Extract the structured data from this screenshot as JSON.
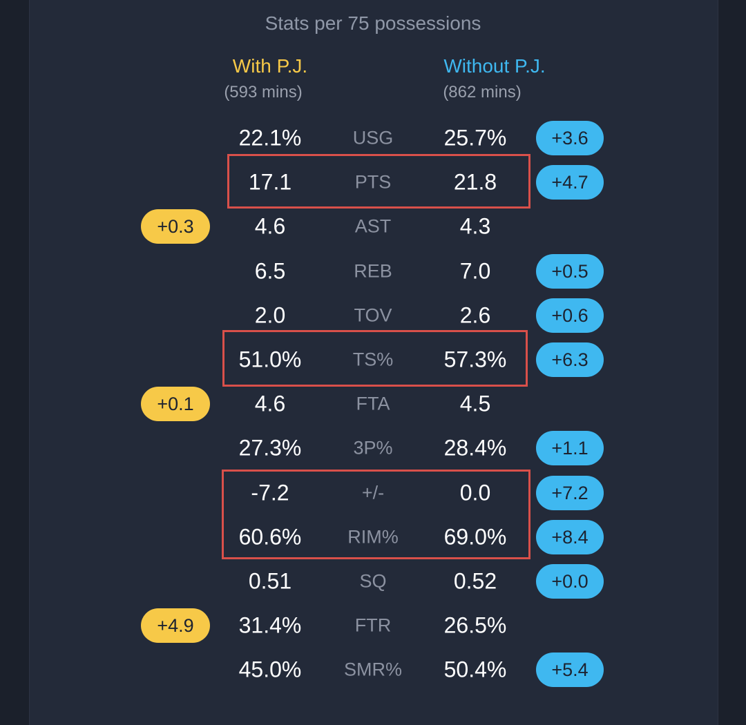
{
  "header": {
    "subtitle": "Stats per 75 possessions"
  },
  "columns": {
    "with": {
      "label": "With P.J.",
      "mins": "(593 mins)",
      "color": "#f7c948"
    },
    "without": {
      "label": "Without P.J.",
      "mins": "(862 mins)",
      "color": "#3fb8f0"
    }
  },
  "rows": [
    {
      "stat": "USG",
      "with": "22.1%",
      "without": "25.7%",
      "diff": "+3.6",
      "diff_side": "without"
    },
    {
      "stat": "PTS",
      "with": "17.1",
      "without": "21.8",
      "diff": "+4.7",
      "diff_side": "without",
      "highlighted": true
    },
    {
      "stat": "AST",
      "with": "4.6",
      "without": "4.3",
      "diff": "+0.3",
      "diff_side": "with"
    },
    {
      "stat": "REB",
      "with": "6.5",
      "without": "7.0",
      "diff": "+0.5",
      "diff_side": "without"
    },
    {
      "stat": "TOV",
      "with": "2.0",
      "without": "2.6",
      "diff": "+0.6",
      "diff_side": "without"
    },
    {
      "stat": "TS%",
      "with": "51.0%",
      "without": "57.3%",
      "diff": "+6.3",
      "diff_side": "without",
      "highlighted": true
    },
    {
      "stat": "FTA",
      "with": "4.6",
      "without": "4.5",
      "diff": "+0.1",
      "diff_side": "with"
    },
    {
      "stat": "3P%",
      "with": "27.3%",
      "without": "28.4%",
      "diff": "+1.1",
      "diff_side": "without"
    },
    {
      "stat": "+/-",
      "with": "-7.2",
      "without": "0.0",
      "diff": "+7.2",
      "diff_side": "without",
      "highlighted": true
    },
    {
      "stat": "RIM%",
      "with": "60.6%",
      "without": "69.0%",
      "diff": "+8.4",
      "diff_side": "without",
      "highlighted": true
    },
    {
      "stat": "SQ",
      "with": "0.51",
      "without": "0.52",
      "diff": "+0.0",
      "diff_side": "without"
    },
    {
      "stat": "FTR",
      "with": "31.4%",
      "without": "26.5%",
      "diff": "+4.9",
      "diff_side": "with"
    },
    {
      "stat": "SMR%",
      "with": "45.0%",
      "without": "50.4%",
      "diff": "+5.4",
      "diff_side": "without"
    }
  ],
  "highlight_color": "#d9504a"
}
